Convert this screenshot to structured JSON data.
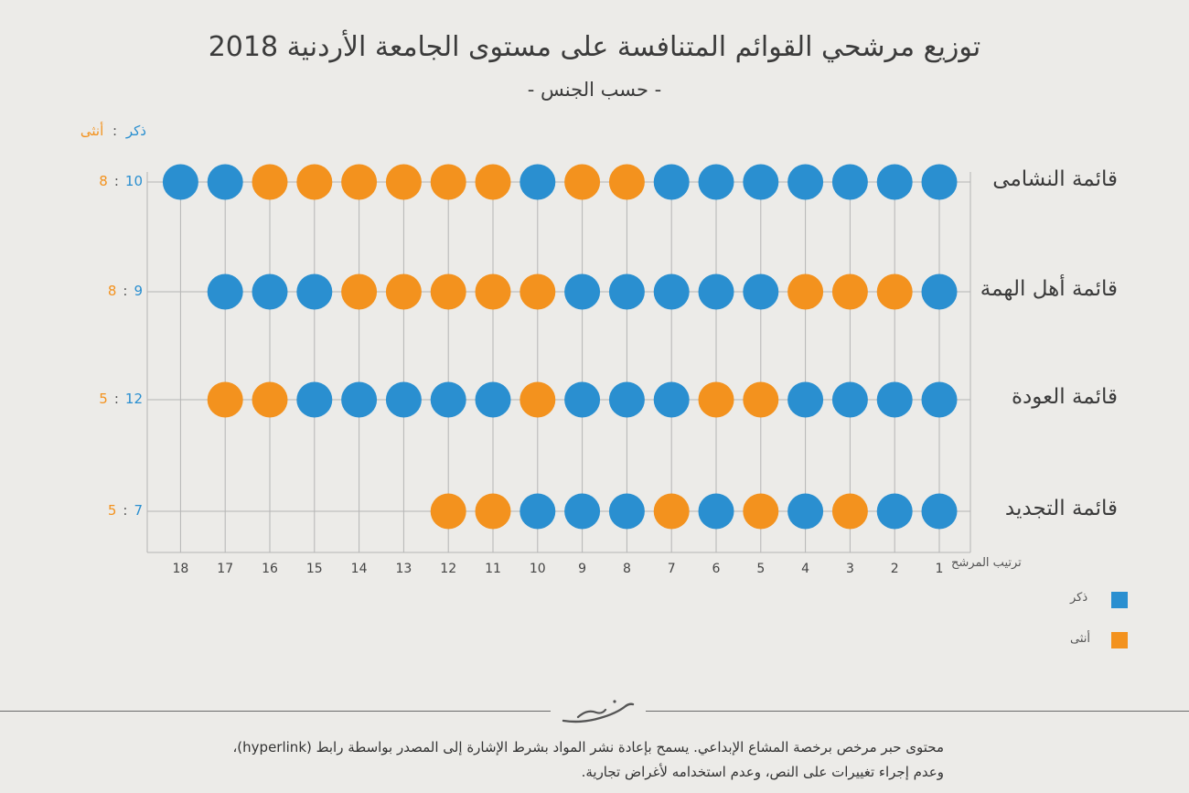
{
  "title": "توزيع مرشحي القوائم المتنافسة على مستوى الجامعة الأردنية 2018",
  "subtitle": "- حسب الجنس -",
  "ratio_legend": {
    "male": "ذكر",
    "separator": ":",
    "female": "أنثى"
  },
  "legend": [
    {
      "label": "ذكر",
      "color": "#2a8fd0"
    },
    {
      "label": "أنثى",
      "color": "#f3921e"
    }
  ],
  "colors": {
    "male": "#2a8fd0",
    "female": "#f3921e",
    "grid": "#b5b5b5"
  },
  "chart_data": {
    "type": "scatter",
    "xlabel": "ترتيب المرشح",
    "x_ticks": [
      1,
      2,
      3,
      4,
      5,
      6,
      7,
      8,
      9,
      10,
      11,
      12,
      13,
      14,
      15,
      16,
      17,
      18
    ],
    "legend_placement": "bottom-right",
    "grid": true,
    "series": [
      {
        "name": "قائمة النشامى",
        "male": "10",
        "female": "8",
        "candidates": [
          "M",
          "M",
          "M",
          "M",
          "M",
          "M",
          "M",
          "F",
          "F",
          "M",
          "F",
          "F",
          "F",
          "F",
          "F",
          "F",
          "M",
          "M"
        ]
      },
      {
        "name": "قائمة أهل الهمة",
        "male": "9",
        "female": "8",
        "candidates": [
          "M",
          "F",
          "F",
          "F",
          "M",
          "M",
          "M",
          "M",
          "M",
          "F",
          "F",
          "F",
          "F",
          "F",
          "M",
          "M",
          "M"
        ]
      },
      {
        "name": "قائمة العودة",
        "male": "12",
        "female": "5",
        "candidates": [
          "M",
          "M",
          "M",
          "M",
          "F",
          "F",
          "M",
          "M",
          "M",
          "F",
          "M",
          "M",
          "M",
          "M",
          "M",
          "F",
          "F"
        ]
      },
      {
        "name": "قائمة التجديد",
        "male": "7",
        "female": "5",
        "candidates": [
          "M",
          "M",
          "F",
          "M",
          "F",
          "M",
          "F",
          "M",
          "M",
          "M",
          "F",
          "F"
        ]
      }
    ]
  },
  "footer": {
    "line1": "محتوى حبر مرخص برخصة المشاع الإبداعي. يسمح بإعادة نشر المواد بشرط الإشارة إلى المصدر بواسطة رابط (hyperlink)،",
    "line2": "وعدم إجراء تغييرات على النص، وعدم استخدامه لأغراض تجارية."
  }
}
